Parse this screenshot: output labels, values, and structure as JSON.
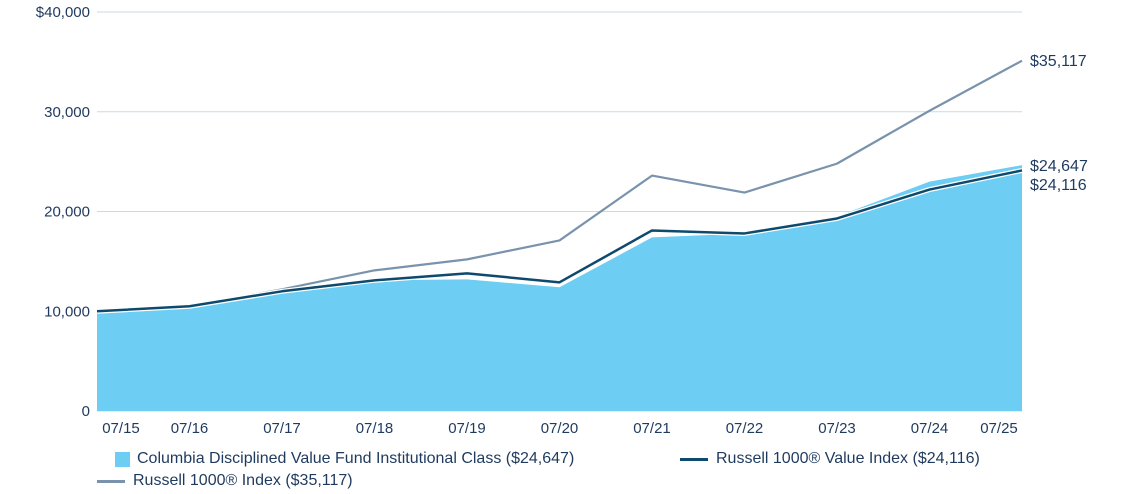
{
  "chart_data": {
    "type": "area",
    "title": "",
    "xlabel": "",
    "ylabel": "",
    "ylim": [
      0,
      40000
    ],
    "yticks": [
      {
        "value": 0,
        "label": "0"
      },
      {
        "value": 10000,
        "label": "10,000"
      },
      {
        "value": 20000,
        "label": "20,000"
      },
      {
        "value": 30000,
        "label": "30,000"
      },
      {
        "value": 40000,
        "label": "$40,000"
      }
    ],
    "categories": [
      "07/15",
      "07/16",
      "07/17",
      "07/18",
      "07/19",
      "07/20",
      "07/21",
      "07/22",
      "07/23",
      "07/24",
      "07/25"
    ],
    "grid": true,
    "legend_position": "bottom",
    "series": [
      {
        "name": "Columbia Disciplined Value Fund Institutional Class ($24,647)",
        "kind": "area",
        "color": "#6dcdf2",
        "values": [
          10000,
          10400,
          11950,
          13100,
          13200,
          12400,
          17400,
          17800,
          19500,
          23000,
          24647
        ],
        "end_label": "$24,647"
      },
      {
        "name": "Russell 1000® Value Index ($24,116)",
        "kind": "line",
        "color": "#0d4a6e",
        "values": [
          10000,
          10500,
          12000,
          13100,
          13800,
          12900,
          18100,
          17800,
          19300,
          22200,
          24116
        ],
        "end_label": "$24,116"
      },
      {
        "name": "Russell 1000® Index ($35,117)",
        "kind": "line",
        "color": "#7a93ac",
        "values": [
          10000,
          10500,
          12200,
          14100,
          15200,
          17100,
          23600,
          21900,
          24800,
          30100,
          35117
        ],
        "end_label": "$35,117"
      }
    ]
  }
}
